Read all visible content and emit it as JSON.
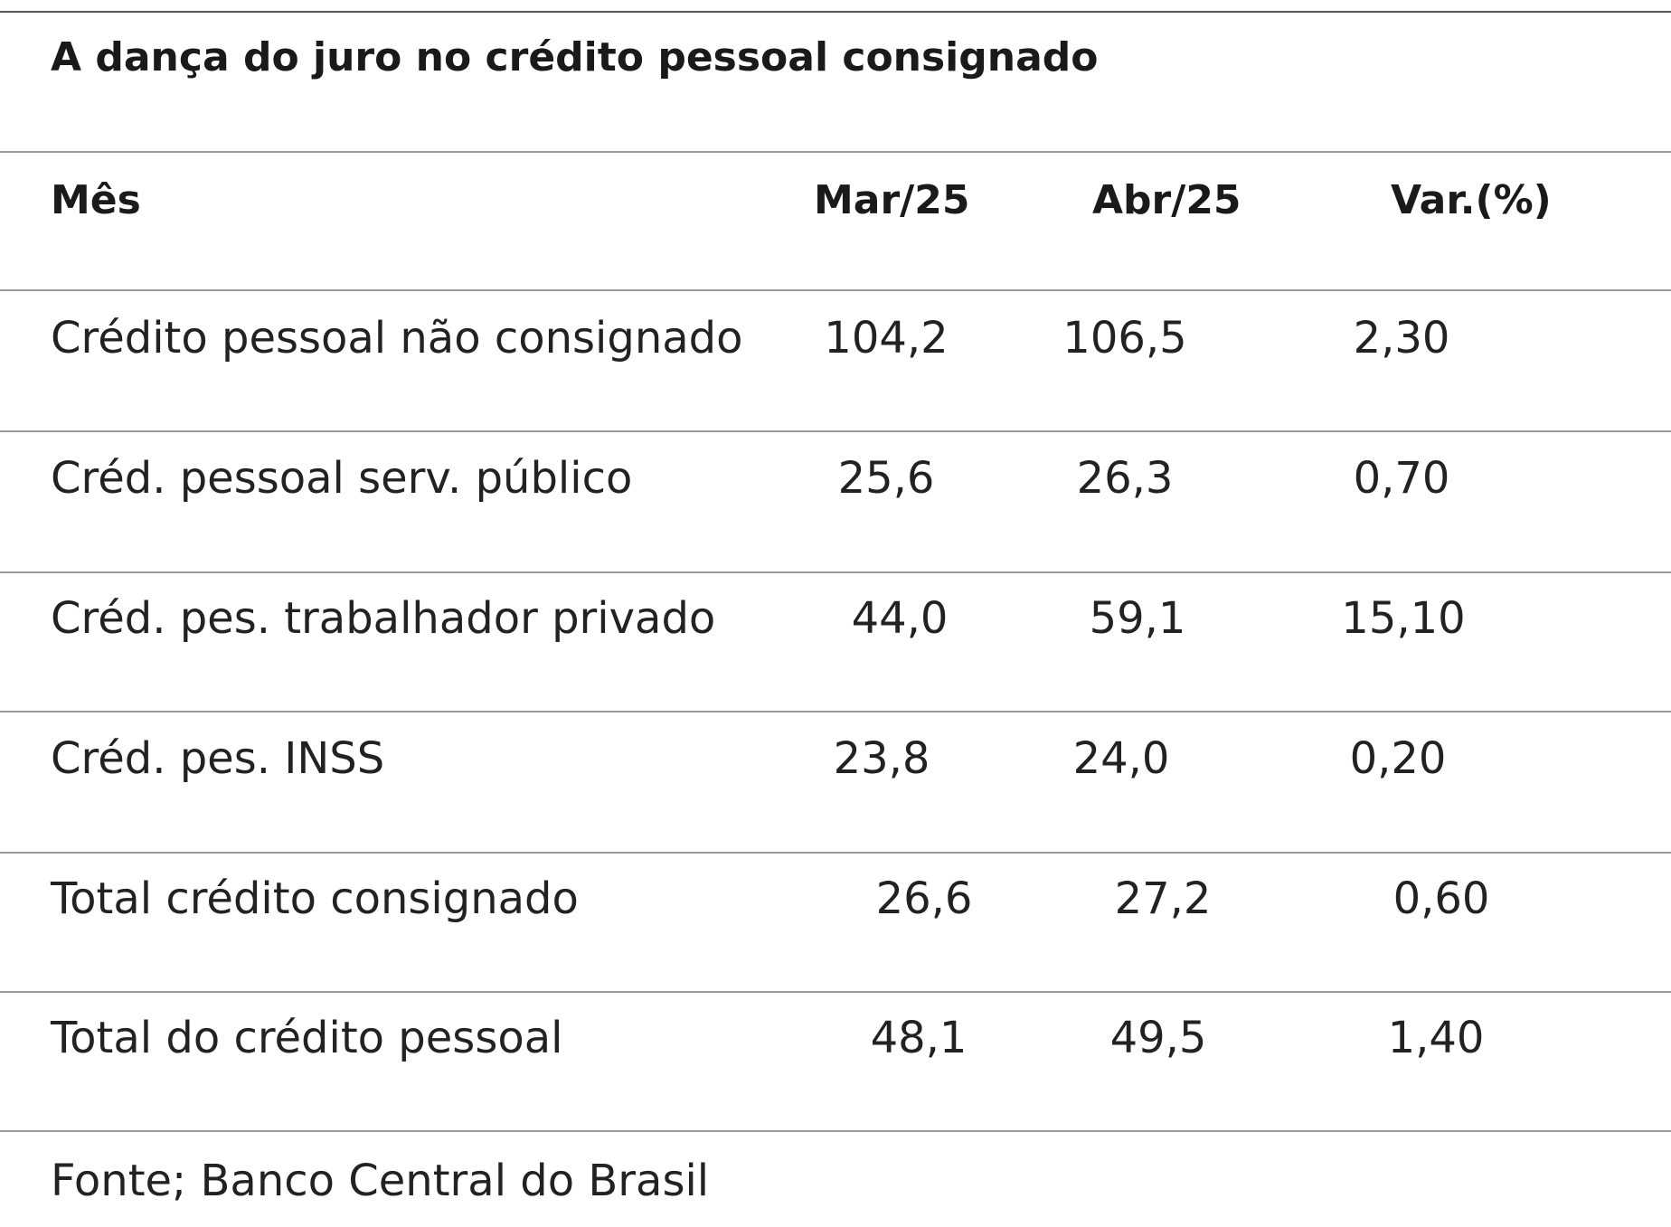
{
  "chart_data": {
    "type": "table",
    "title": "A dança do juro no crédito pessoal consignado",
    "columns": [
      "Mês",
      "Mar/25",
      "Abr/25",
      "Var.(%)"
    ],
    "rows": [
      {
        "label": "Crédito pessoal não consignado",
        "mar": "104,2",
        "abr": "106,5",
        "var": "2,30"
      },
      {
        "label": "Créd. pessoal serv. público",
        "mar": "25,6",
        "abr": "26,3",
        "var": "0,70"
      },
      {
        "label": "Créd. pes. trabalhador privado",
        "mar": "44,0",
        "abr": "59,1",
        "var": "15,10"
      },
      {
        "label": "Créd. pes. INSS",
        "mar": "23,8",
        "abr": "24,0",
        "var": "0,20"
      },
      {
        "label": "Total crédito consignado",
        "mar": "26,6",
        "abr": "27,2",
        "var": "0,60"
      },
      {
        "label": "Total do crédito pessoal",
        "mar": "48,1",
        "abr": "49,5",
        "var": "1,40"
      }
    ],
    "source": "Fonte; Banco Central do Brasil"
  }
}
